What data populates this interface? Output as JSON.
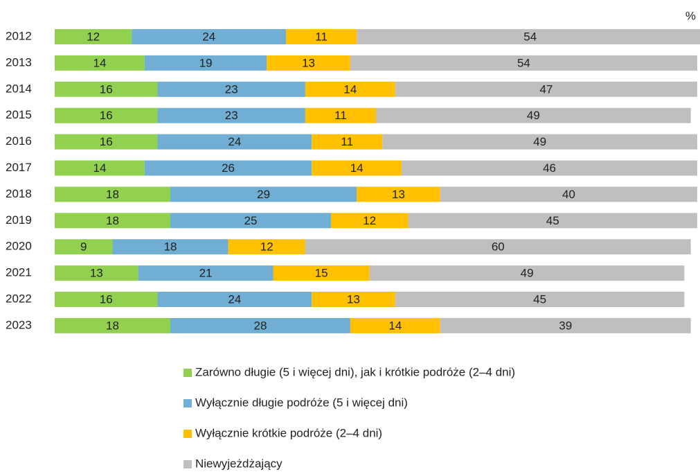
{
  "chart_data": {
    "type": "stacked-bar-horizontal",
    "unit_label": "%",
    "categories": [
      "2012",
      "2013",
      "2014",
      "2015",
      "2016",
      "2017",
      "2018",
      "2019",
      "2020",
      "2021",
      "2022",
      "2023"
    ],
    "series": [
      {
        "name": "Zarówno długie (5 i więcej dni), jak i krótkie podróże (2–4 dni)",
        "color": "#92d050",
        "values": [
          12,
          14,
          16,
          16,
          16,
          14,
          18,
          18,
          9,
          13,
          16,
          18
        ]
      },
      {
        "name": "Wyłącznie długie podróże (5 i więcej dni)",
        "color": "#70aed3",
        "values": [
          24,
          19,
          23,
          23,
          24,
          26,
          29,
          25,
          18,
          21,
          24,
          28
        ]
      },
      {
        "name": "Wyłącznie krótkie podróże (2–4 dni)",
        "color": "#ffc000",
        "values": [
          11,
          13,
          14,
          11,
          11,
          14,
          13,
          12,
          12,
          15,
          13,
          14
        ]
      },
      {
        "name": "Niewyjeżdżający",
        "color": "#bfbfbf",
        "values": [
          54,
          54,
          47,
          49,
          49,
          46,
          40,
          45,
          60,
          49,
          45,
          39
        ]
      }
    ],
    "xlim": [
      0,
      100
    ],
    "legend": "bottom"
  }
}
